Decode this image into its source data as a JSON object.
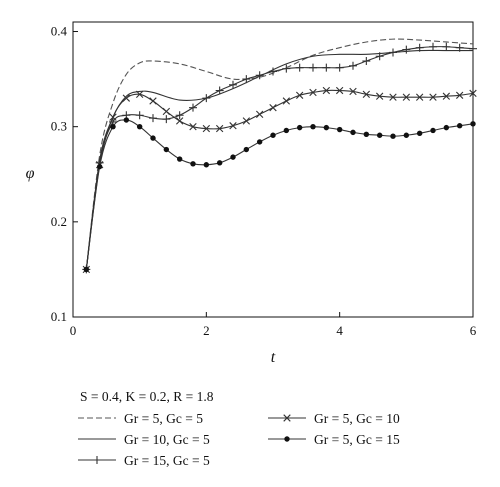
{
  "chart_data": {
    "type": "line",
    "xlabel": "t",
    "ylabel": "φ",
    "xlim": [
      0,
      6
    ],
    "ylim": [
      0.1,
      0.41
    ],
    "x_ticks": [
      0,
      2,
      4,
      6
    ],
    "y_ticks": [
      0.1,
      0.2,
      0.3,
      0.4
    ],
    "x_tick_labels": [
      "0",
      "2",
      "4",
      "6"
    ],
    "y_tick_labels": [
      "0.1",
      "0.2",
      "0.3",
      "0.4"
    ],
    "grid": false,
    "legend": {
      "position": "bottom",
      "params_text": "S = 0.4, K = 0.2, R = 1.8"
    },
    "series": [
      {
        "name": "Gr = 5, Gc = 5",
        "style": "dashed",
        "marker": "none",
        "x": [
          0.2,
          0.4,
          0.6,
          0.8,
          1.0,
          1.2,
          1.6,
          2.0,
          2.4,
          2.8,
          3.2,
          3.6,
          4.0,
          4.4,
          4.8,
          5.2,
          5.6,
          6.0
        ],
        "y": [
          0.15,
          0.27,
          0.325,
          0.355,
          0.367,
          0.369,
          0.366,
          0.358,
          0.35,
          0.352,
          0.362,
          0.375,
          0.383,
          0.389,
          0.392,
          0.391,
          0.389,
          0.387
        ]
      },
      {
        "name": "Gr = 10, Gc = 5",
        "style": "solid",
        "marker": "none",
        "x": [
          0.2,
          0.4,
          0.6,
          0.8,
          1.0,
          1.2,
          1.6,
          2.0,
          2.4,
          2.8,
          3.2,
          3.6,
          4.0,
          4.4,
          4.8,
          5.2,
          5.6,
          6.0
        ],
        "y": [
          0.15,
          0.265,
          0.31,
          0.332,
          0.337,
          0.336,
          0.328,
          0.33,
          0.34,
          0.353,
          0.366,
          0.374,
          0.376,
          0.376,
          0.378,
          0.38,
          0.38,
          0.38
        ]
      },
      {
        "name": "Gr = 15, Gc = 5",
        "style": "solid",
        "marker": "plus",
        "x": [
          0.2,
          0.4,
          0.6,
          0.8,
          1.0,
          1.2,
          1.4,
          1.6,
          1.8,
          2.0,
          2.2,
          2.4,
          2.6,
          2.8,
          3.0,
          3.2,
          3.4,
          3.6,
          3.8,
          4.0,
          4.2,
          4.4,
          4.6,
          4.8,
          5.0,
          5.2,
          5.4,
          5.6,
          5.8,
          6.0
        ],
        "y": [
          0.15,
          0.262,
          0.305,
          0.312,
          0.312,
          0.309,
          0.308,
          0.312,
          0.32,
          0.33,
          0.338,
          0.344,
          0.35,
          0.354,
          0.358,
          0.361,
          0.362,
          0.362,
          0.362,
          0.362,
          0.364,
          0.369,
          0.374,
          0.378,
          0.381,
          0.383,
          0.384,
          0.384,
          0.383,
          0.382
        ]
      },
      {
        "name": "Gr = 5, Gc = 10",
        "style": "solid",
        "marker": "x",
        "x": [
          0.2,
          0.4,
          0.6,
          0.8,
          1.0,
          1.2,
          1.4,
          1.6,
          1.8,
          2.0,
          2.2,
          2.4,
          2.6,
          2.8,
          3.0,
          3.2,
          3.4,
          3.6,
          3.8,
          4.0,
          4.2,
          4.4,
          4.6,
          4.8,
          5.0,
          5.2,
          5.4,
          5.6,
          5.8,
          6.0
        ],
        "y": [
          0.15,
          0.26,
          0.31,
          0.33,
          0.334,
          0.327,
          0.316,
          0.306,
          0.3,
          0.298,
          0.298,
          0.301,
          0.306,
          0.313,
          0.32,
          0.327,
          0.333,
          0.336,
          0.338,
          0.338,
          0.337,
          0.334,
          0.332,
          0.331,
          0.331,
          0.331,
          0.331,
          0.332,
          0.333,
          0.335
        ]
      },
      {
        "name": "Gr = 5, Gc = 15",
        "style": "solid",
        "marker": "dot",
        "x": [
          0.2,
          0.4,
          0.6,
          0.8,
          1.0,
          1.2,
          1.4,
          1.6,
          1.8,
          2.0,
          2.2,
          2.4,
          2.6,
          2.8,
          3.0,
          3.2,
          3.4,
          3.6,
          3.8,
          4.0,
          4.2,
          4.4,
          4.6,
          4.8,
          5.0,
          5.2,
          5.4,
          5.6,
          5.8,
          6.0
        ],
        "y": [
          0.15,
          0.258,
          0.3,
          0.307,
          0.3,
          0.288,
          0.276,
          0.266,
          0.261,
          0.26,
          0.262,
          0.268,
          0.276,
          0.284,
          0.291,
          0.296,
          0.299,
          0.3,
          0.299,
          0.297,
          0.294,
          0.292,
          0.291,
          0.29,
          0.291,
          0.293,
          0.296,
          0.299,
          0.301,
          0.303
        ]
      }
    ]
  }
}
